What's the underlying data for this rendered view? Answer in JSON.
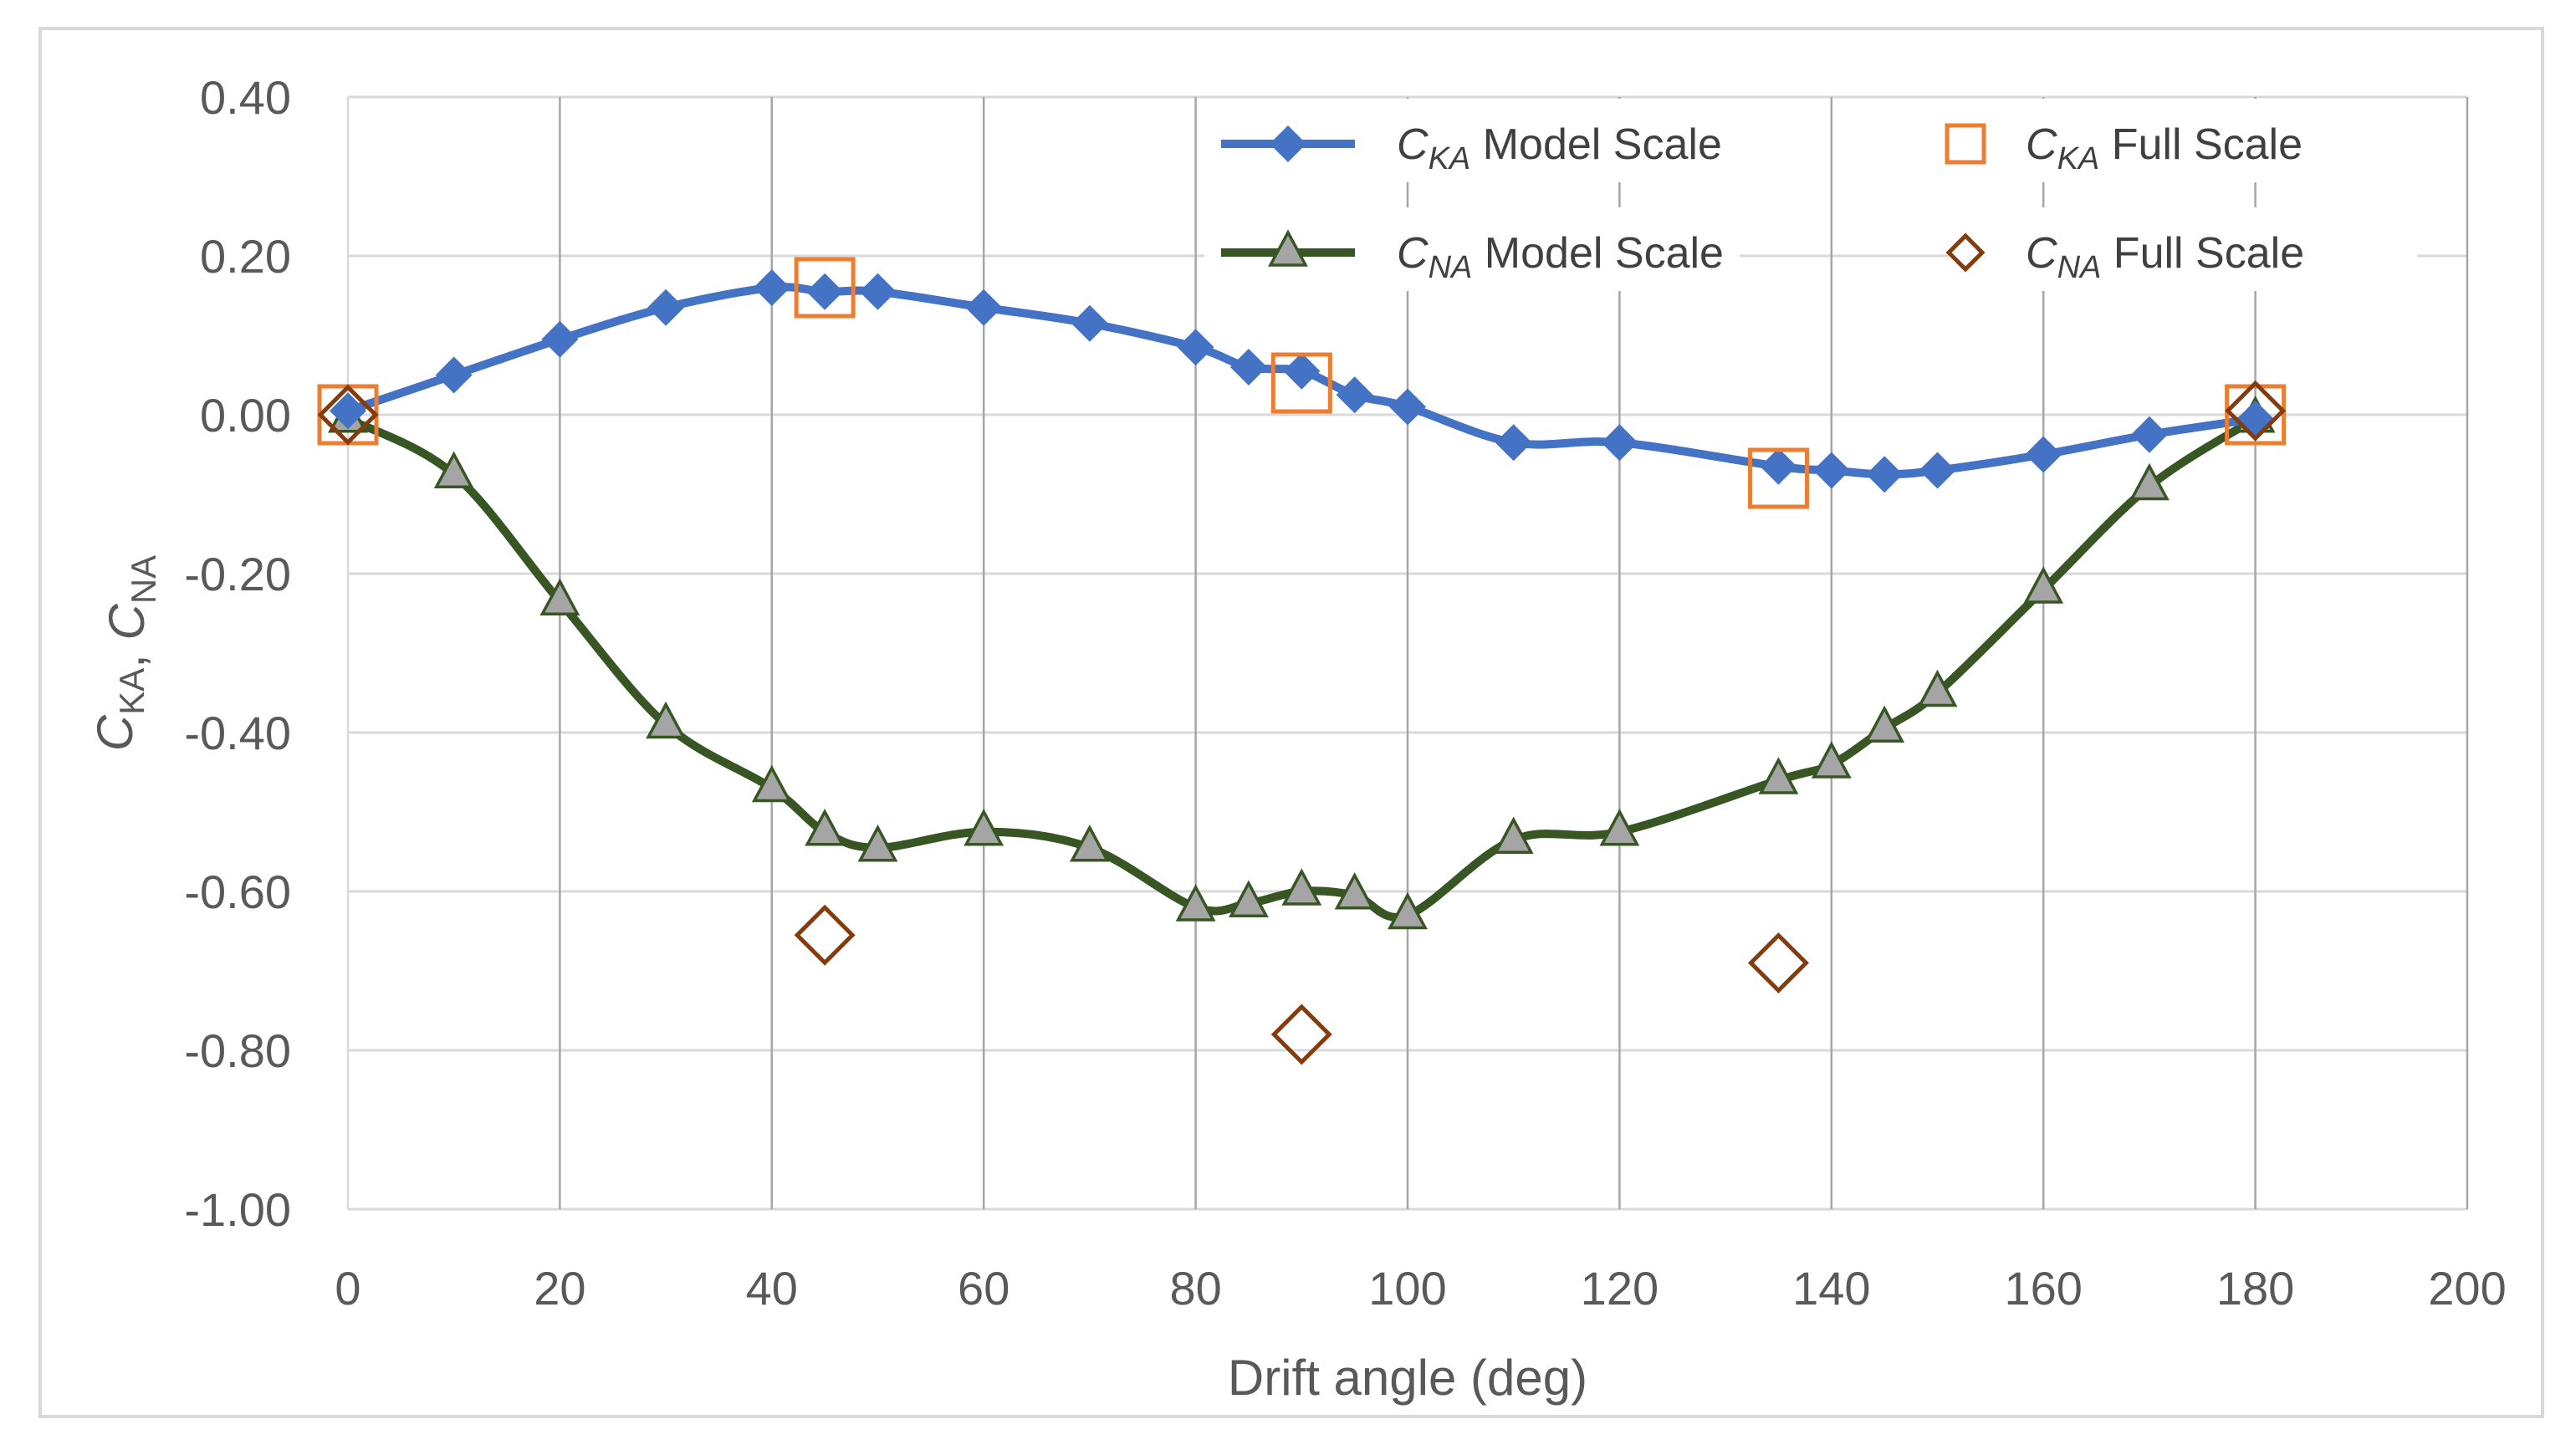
{
  "chart_data": {
    "type": "line",
    "title": "",
    "xlabel": "Drift angle (deg)",
    "ylabel": {
      "parts": [
        [
          "C",
          "KA"
        ],
        [
          "C",
          "NA"
        ]
      ],
      "separator": ", "
    },
    "xlim": [
      0,
      200
    ],
    "ylim": [
      -1.0,
      0.4
    ],
    "xticks": [
      0,
      20,
      40,
      60,
      80,
      100,
      120,
      140,
      160,
      180,
      200
    ],
    "xtick_labels": [
      "0",
      "20",
      "40",
      "60",
      "80",
      "100",
      "120",
      "140",
      "160",
      "180",
      "200"
    ],
    "yticks": [
      0.4,
      0.2,
      0.0,
      -0.2,
      -0.4,
      -0.6,
      -0.8,
      -1.0
    ],
    "ytick_labels": [
      "0.40",
      "0.20",
      "0.00",
      "-0.20",
      "-0.40",
      "-0.60",
      "-0.80",
      "-1.00"
    ],
    "grid": {
      "vertical": true,
      "horizontal": true
    },
    "legend_position": "top-right",
    "series": [
      {
        "name": "C_KA Model Scale",
        "legend_symbol": "C",
        "legend_sub": "KA",
        "legend_rest": "Model Scale",
        "marker": "diamond",
        "line": true,
        "color": "#4472c4",
        "x": [
          0,
          10,
          20,
          30,
          40,
          45,
          50,
          60,
          70,
          80,
          85,
          90,
          95,
          100,
          110,
          120,
          135,
          140,
          145,
          150,
          160,
          170,
          180
        ],
        "y": [
          0.005,
          0.05,
          0.095,
          0.135,
          0.16,
          0.155,
          0.155,
          0.135,
          0.115,
          0.085,
          0.06,
          0.055,
          0.025,
          0.01,
          -0.035,
          -0.035,
          -0.065,
          -0.07,
          -0.075,
          -0.07,
          -0.05,
          -0.025,
          -0.005
        ]
      },
      {
        "name": "C_NA Model Scale",
        "legend_symbol": "C",
        "legend_sub": "NA",
        "legend_rest": "Model Scale",
        "marker": "triangle",
        "line": true,
        "color": "#375623",
        "marker_fill": "#a5a5a5",
        "x": [
          0,
          10,
          20,
          30,
          40,
          45,
          50,
          60,
          70,
          80,
          85,
          90,
          95,
          100,
          110,
          120,
          135,
          140,
          145,
          150,
          160,
          170,
          180
        ],
        "y": [
          -0.005,
          -0.075,
          -0.235,
          -0.39,
          -0.47,
          -0.525,
          -0.545,
          -0.525,
          -0.545,
          -0.62,
          -0.615,
          -0.6,
          -0.605,
          -0.63,
          -0.535,
          -0.525,
          -0.46,
          -0.44,
          -0.395,
          -0.35,
          -0.22,
          -0.09,
          -0.005
        ]
      },
      {
        "name": "C_KA Full Scale",
        "legend_symbol": "C",
        "legend_sub": "KA",
        "legend_rest": "Full Scale",
        "marker": "square",
        "line": false,
        "color": "#ed7d31",
        "x": [
          0,
          45,
          90,
          135,
          180
        ],
        "y": [
          0.0,
          0.16,
          0.04,
          -0.08,
          0.0
        ]
      },
      {
        "name": "C_NA Full Scale",
        "legend_symbol": "C",
        "legend_sub": "NA",
        "legend_rest": "Full Scale",
        "marker": "diamond-open",
        "line": false,
        "color": "#843c0c",
        "x": [
          0,
          45,
          90,
          135,
          180
        ],
        "y": [
          0.0,
          -0.655,
          -0.78,
          -0.69,
          0.005
        ]
      }
    ]
  }
}
